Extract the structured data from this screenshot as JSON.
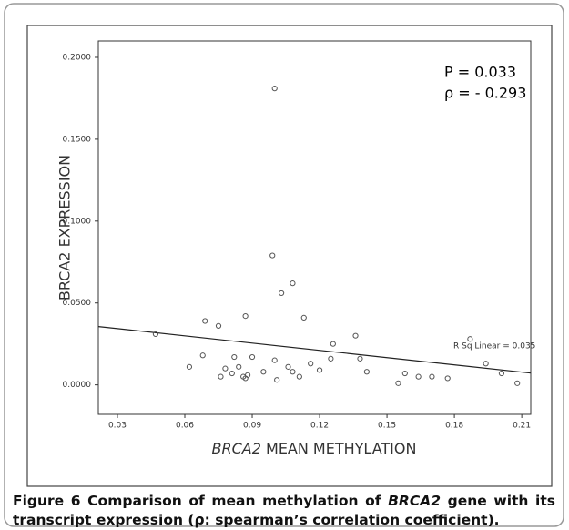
{
  "chart_data": {
    "type": "scatter",
    "x_label": [
      "BRCA2",
      " MEAN METHYLATION"
    ],
    "y_label": "BRCA2 EXPRESSION",
    "annotations": [
      "P =  0.033",
      "ρ = - 0.293"
    ],
    "fit_label": "R Sq Linear = 0.035",
    "fit_line": {
      "x": [
        0.0215,
        0.214
      ],
      "y": [
        0.0356,
        0.0072
      ]
    },
    "color": "#555555",
    "xlim": [
      0.0215,
      0.214
    ],
    "ylim": [
      -0.018,
      0.21
    ],
    "xticks": [
      0.03,
      0.06,
      0.09,
      0.12,
      0.15,
      0.18,
      0.21
    ],
    "yticks": [
      {
        "value": 0,
        "label": "0.0000"
      },
      {
        "value": 0.05,
        "label": "0.0500"
      },
      {
        "value": 0.1,
        "label": "0.1000"
      },
      {
        "value": 0.15,
        "label": "0.1500"
      },
      {
        "value": 0.2,
        "label": "0.2000"
      }
    ],
    "x": [
      0.047,
      0.062,
      0.068,
      0.069,
      0.075,
      0.076,
      0.078,
      0.081,
      0.082,
      0.084,
      0.086,
      0.087,
      0.087,
      0.088,
      0.09,
      0.095,
      0.099,
      0.1,
      0.1,
      0.101,
      0.103,
      0.106,
      0.108,
      0.108,
      0.111,
      0.113,
      0.116,
      0.12,
      0.125,
      0.126,
      0.136,
      0.138,
      0.141,
      0.155,
      0.158,
      0.164,
      0.17,
      0.177,
      0.187,
      0.194,
      0.201,
      0.208
    ],
    "values": [
      0.031,
      0.011,
      0.018,
      0.039,
      0.036,
      0.005,
      0.01,
      0.007,
      0.017,
      0.011,
      0.005,
      0.004,
      0.042,
      0.006,
      0.017,
      0.008,
      0.079,
      0.181,
      0.015,
      0.003,
      0.056,
      0.011,
      0.062,
      0.008,
      0.005,
      0.041,
      0.013,
      0.009,
      0.016,
      0.025,
      0.03,
      0.016,
      0.008,
      0.001,
      0.007,
      0.005,
      0.005,
      0.004,
      0.028,
      0.013,
      0.007,
      0.001
    ]
  },
  "caption": {
    "label": "Figure 6",
    "parts": [
      " Comparison of mean methylation of ",
      "BRCA2",
      " gene with its transcript expression (ρ: spearman’s correlation coefficient)."
    ]
  }
}
